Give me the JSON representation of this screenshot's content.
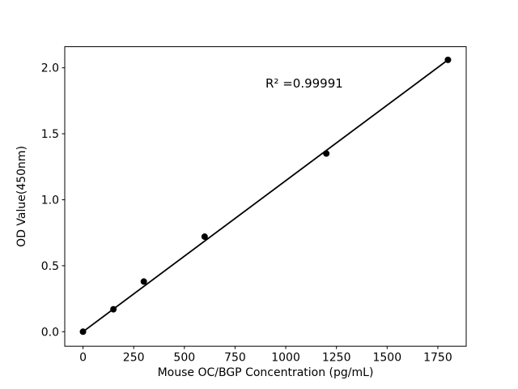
{
  "chart_data": {
    "type": "scatter",
    "title": "",
    "xlabel": "Mouse OC/BGP Concentration (pg/mL)",
    "ylabel": "OD Value(450nm)",
    "annotation": "R² =0.99991",
    "annotation_pos": {
      "x": 900,
      "y": 1.85
    },
    "x": [
      0,
      150,
      300,
      600,
      1200,
      1800
    ],
    "y": [
      0.0,
      0.17,
      0.38,
      0.72,
      1.35,
      2.06
    ],
    "fit_line": {
      "x1": 0,
      "y1": 0.0,
      "x2": 1800,
      "y2": 2.06
    },
    "xlim": [
      -90,
      1890
    ],
    "ylim": [
      -0.11,
      2.16
    ],
    "xticks": [
      "0",
      "250",
      "500",
      "750",
      "1000",
      "1250",
      "1500",
      "1750"
    ],
    "yticks": [
      "0.0",
      "0.5",
      "1.0",
      "1.5",
      "2.0"
    ],
    "grid": false,
    "legend": null,
    "marker_size": 4,
    "colors": {
      "marker": "#000000",
      "line": "#000000",
      "spine": "#000000",
      "text": "#000000",
      "background": "#ffffff"
    }
  }
}
